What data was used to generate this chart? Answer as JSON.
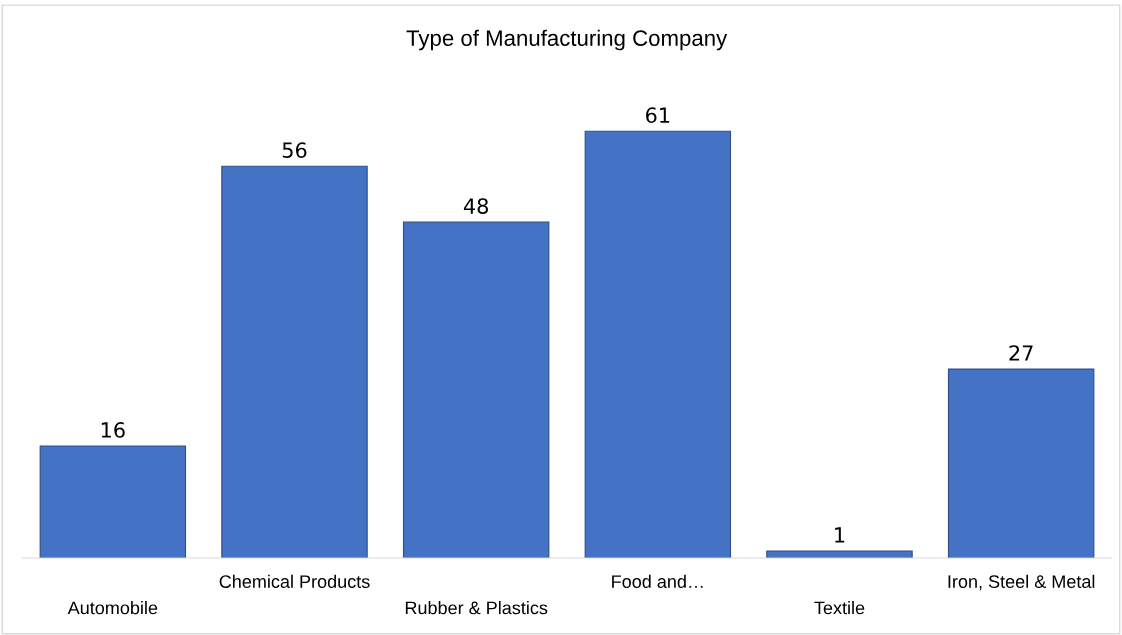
{
  "chart_data": {
    "type": "bar",
    "title": "Type of Manufacturing Company",
    "categories": [
      "Automobile",
      "Chemical Products",
      "Rubber & Plastics",
      "Food and…",
      "Textile",
      "Iron, Steel & Metal"
    ],
    "values": [
      16,
      56,
      48,
      61,
      1,
      27
    ],
    "color": "#4472c4",
    "data_labels": true
  }
}
